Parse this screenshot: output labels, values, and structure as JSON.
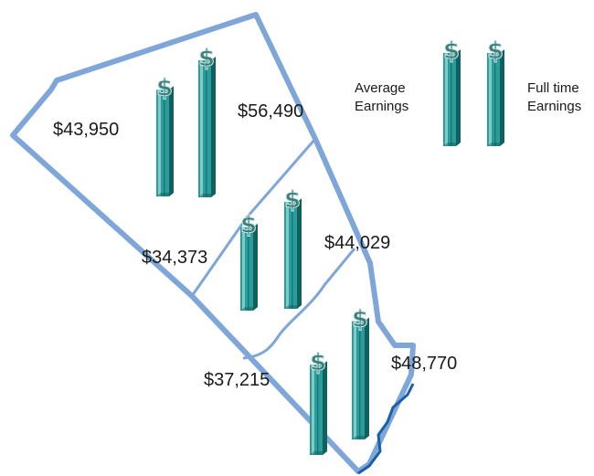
{
  "chart_data": {
    "type": "bar",
    "title": "",
    "series": [
      {
        "name": "Average Earnings",
        "color": "#2a9c9a"
      },
      {
        "name": "Full time Earnings",
        "color": "#2a9c9a"
      }
    ],
    "regions": [
      {
        "name": "",
        "average": 43950,
        "full_time": 56490,
        "average_label": "$43,950",
        "full_time_label": "$56,490"
      },
      {
        "name": "",
        "average": 34373,
        "full_time": 44029,
        "average_label": "$34,373",
        "full_time_label": "$44,029"
      },
      {
        "name": "",
        "average": 37215,
        "full_time": 48770,
        "average_label": "$37,215",
        "full_time_label": "$48,770"
      }
    ],
    "legend": {
      "placement": "top-right",
      "entries": [
        "Average Earnings",
        "Full time Earnings"
      ],
      "average_lines": [
        "Average",
        "Earnings"
      ],
      "full_time_lines": [
        "Full time",
        "Earnings"
      ]
    },
    "colors": {
      "bar_face": "#2a9c9a",
      "bar_light": "#8fd3d0",
      "bar_dark": "#11605f",
      "border": "#7fa6d8",
      "river": "#1a5fa8",
      "dollar_sign": "#3d7c78"
    }
  }
}
